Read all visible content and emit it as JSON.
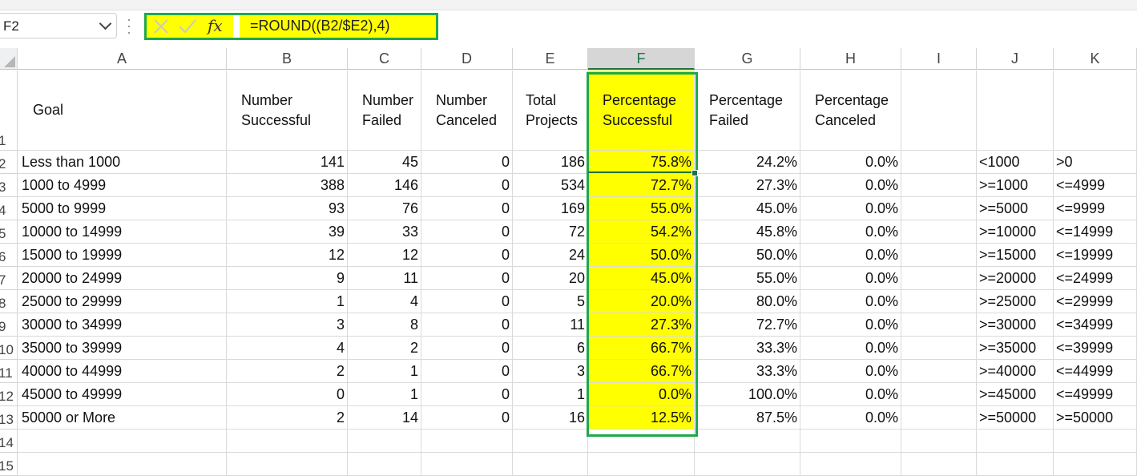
{
  "name_box": "F2",
  "formula": "=ROUND((B2/$E2),4)",
  "icons": {
    "cancel": "x-icon",
    "enter": "check-icon",
    "function": "fx-icon"
  },
  "fx_label": "fx",
  "colors": {
    "highlight": "#ffff00",
    "outline": "#1fa84a",
    "selected_header": "#1e7145"
  },
  "columns": [
    "A",
    "B",
    "C",
    "D",
    "E",
    "F",
    "G",
    "H",
    "I",
    "J",
    "K"
  ],
  "row_numbers": [
    "1",
    "2",
    "3",
    "4",
    "5",
    "6",
    "7",
    "8",
    "9",
    "10",
    "11",
    "12",
    "13",
    "14",
    "15"
  ],
  "headers": {
    "goal": "Goal",
    "number_successful": "Number Successful",
    "number_failed": "Number Failed",
    "number_canceled": "Number Canceled",
    "total_projects": "Total Projects",
    "percentage_successful": "Percentage Successful",
    "percentage_failed": "Percentage Failed",
    "percentage_canceled": "Percentage Canceled"
  },
  "rows": [
    {
      "goal": "Less than 1000",
      "succ": "141",
      "fail": "45",
      "canc": "0",
      "total": "186",
      "psucc": "75.8%",
      "pfail": "24.2%",
      "pcanc": "0.0%",
      "j": "<1000",
      "k": ">0"
    },
    {
      "goal": "1000 to 4999",
      "succ": "388",
      "fail": "146",
      "canc": "0",
      "total": "534",
      "psucc": "72.7%",
      "pfail": "27.3%",
      "pcanc": "0.0%",
      "j": ">=1000",
      "k": "<=4999"
    },
    {
      "goal": "5000 to 9999",
      "succ": "93",
      "fail": "76",
      "canc": "0",
      "total": "169",
      "psucc": "55.0%",
      "pfail": "45.0%",
      "pcanc": "0.0%",
      "j": ">=5000",
      "k": "<=9999"
    },
    {
      "goal": "10000 to 14999",
      "succ": "39",
      "fail": "33",
      "canc": "0",
      "total": "72",
      "psucc": "54.2%",
      "pfail": "45.8%",
      "pcanc": "0.0%",
      "j": ">=10000",
      "k": "<=14999"
    },
    {
      "goal": "15000 to 19999",
      "succ": "12",
      "fail": "12",
      "canc": "0",
      "total": "24",
      "psucc": "50.0%",
      "pfail": "50.0%",
      "pcanc": "0.0%",
      "j": ">=15000",
      "k": "<=19999"
    },
    {
      "goal": "20000 to 24999",
      "succ": "9",
      "fail": "11",
      "canc": "0",
      "total": "20",
      "psucc": "45.0%",
      "pfail": "55.0%",
      "pcanc": "0.0%",
      "j": ">=20000",
      "k": "<=24999"
    },
    {
      "goal": "25000 to 29999",
      "succ": "1",
      "fail": "4",
      "canc": "0",
      "total": "5",
      "psucc": "20.0%",
      "pfail": "80.0%",
      "pcanc": "0.0%",
      "j": ">=25000",
      "k": "<=29999"
    },
    {
      "goal": "30000 to 34999",
      "succ": "3",
      "fail": "8",
      "canc": "0",
      "total": "11",
      "psucc": "27.3%",
      "pfail": "72.7%",
      "pcanc": "0.0%",
      "j": ">=30000",
      "k": "<=34999"
    },
    {
      "goal": "35000 to 39999",
      "succ": "4",
      "fail": "2",
      "canc": "0",
      "total": "6",
      "psucc": "66.7%",
      "pfail": "33.3%",
      "pcanc": "0.0%",
      "j": ">=35000",
      "k": "<=39999"
    },
    {
      "goal": "40000 to 44999",
      "succ": "2",
      "fail": "1",
      "canc": "0",
      "total": "3",
      "psucc": "66.7%",
      "pfail": "33.3%",
      "pcanc": "0.0%",
      "j": ">=40000",
      "k": "<=44999"
    },
    {
      "goal": "45000 to 49999",
      "succ": "0",
      "fail": "1",
      "canc": "0",
      "total": "1",
      "psucc": "0.0%",
      "pfail": "100.0%",
      "pcanc": "0.0%",
      "j": ">=45000",
      "k": "<=49999"
    },
    {
      "goal": "50000 or More",
      "succ": "2",
      "fail": "14",
      "canc": "0",
      "total": "16",
      "psucc": "12.5%",
      "pfail": "87.5%",
      "pcanc": "0.0%",
      "j": ">=50000",
      "k": ">=50000"
    }
  ]
}
